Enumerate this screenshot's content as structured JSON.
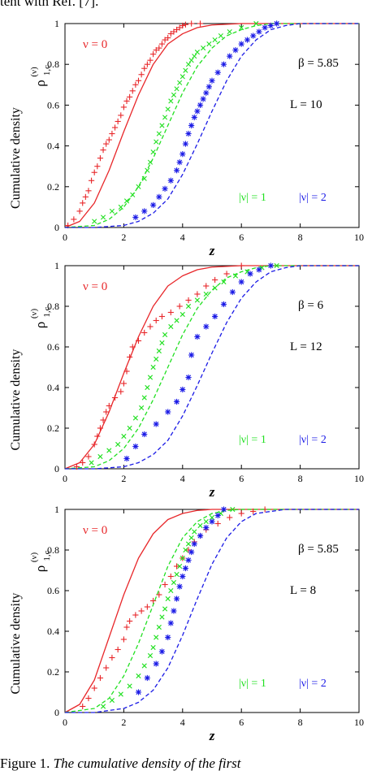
{
  "page": {
    "top_caption": "tent with Ref. [7].",
    "bottom_caption_label": "Figure 1.",
    "bottom_caption_text": "The cumulative density of the first"
  },
  "shared": {
    "ylabel": "Cumulative density",
    "ysymbol_main": "ρ",
    "ysymbol_sup": "(ν)",
    "ysymbol_sub": "1,c",
    "xlabel": "z",
    "xlim": [
      0,
      10
    ],
    "ylim": [
      0,
      1
    ],
    "xticks": [
      "0",
      "2",
      "4",
      "6",
      "8",
      "10"
    ],
    "yticks": [
      "0",
      "0.2",
      "0.4",
      "0.6",
      "0.8",
      "1"
    ],
    "colors": {
      "nu0": "#e8272a",
      "nu1": "#22e022",
      "nu2": "#1b1be6"
    },
    "markers": {
      "nu0": "plus",
      "nu1": "cross",
      "nu2": "asterisk"
    },
    "legend": {
      "nu0": "ν = 0",
      "nu1": "|ν| = 1",
      "nu2": "|ν| = 2"
    }
  },
  "chart_data": [
    {
      "type": "line",
      "annotations": {
        "beta": "β = 5.85",
        "L": "L = 10"
      },
      "series": [
        {
          "name": "ν = 0",
          "kind": "theory",
          "style": "solid",
          "color": "#e8272a",
          "x": [
            0,
            0.5,
            1,
            1.5,
            2,
            2.5,
            3,
            3.5,
            4,
            4.5,
            5,
            6,
            7,
            8,
            10
          ],
          "y": [
            0,
            0.03,
            0.12,
            0.28,
            0.47,
            0.65,
            0.8,
            0.9,
            0.95,
            0.98,
            0.993,
            1,
            1,
            1,
            1
          ]
        },
        {
          "name": "ν = 0",
          "kind": "data",
          "style": "plus",
          "color": "#e8272a",
          "x": [
            0.1,
            0.3,
            0.5,
            0.6,
            0.7,
            0.8,
            0.9,
            1.0,
            1.1,
            1.2,
            1.3,
            1.4,
            1.5,
            1.6,
            1.7,
            1.8,
            1.9,
            2.0,
            2.1,
            2.2,
            2.3,
            2.4,
            2.5,
            2.6,
            2.7,
            2.8,
            2.9,
            3.0,
            3.1,
            3.2,
            3.3,
            3.4,
            3.5,
            3.6,
            3.7,
            3.8,
            3.9,
            4.0,
            4.1,
            4.3,
            4.6
          ],
          "y": [
            0.01,
            0.04,
            0.08,
            0.12,
            0.15,
            0.18,
            0.23,
            0.27,
            0.3,
            0.34,
            0.38,
            0.41,
            0.43,
            0.46,
            0.49,
            0.52,
            0.55,
            0.59,
            0.62,
            0.64,
            0.67,
            0.7,
            0.72,
            0.75,
            0.78,
            0.8,
            0.82,
            0.85,
            0.87,
            0.88,
            0.9,
            0.92,
            0.93,
            0.95,
            0.96,
            0.97,
            0.98,
            0.99,
            0.995,
            1.0,
            1.0
          ]
        },
        {
          "name": "|ν| = 1",
          "kind": "theory",
          "style": "dashed",
          "color": "#22e022",
          "x": [
            0,
            1,
            1.5,
            2,
            2.5,
            3,
            3.5,
            4,
            4.5,
            5,
            5.5,
            6,
            6.5,
            7,
            8,
            10
          ],
          "y": [
            0,
            0.01,
            0.04,
            0.1,
            0.2,
            0.34,
            0.5,
            0.66,
            0.79,
            0.88,
            0.94,
            0.97,
            0.99,
            1,
            1,
            1
          ]
        },
        {
          "name": "|ν| = 1",
          "kind": "data",
          "style": "cross",
          "color": "#22e022",
          "x": [
            1.0,
            1.3,
            1.6,
            1.9,
            2.1,
            2.3,
            2.5,
            2.7,
            2.8,
            2.9,
            3.0,
            3.1,
            3.2,
            3.3,
            3.4,
            3.5,
            3.6,
            3.7,
            3.8,
            3.9,
            4.0,
            4.1,
            4.2,
            4.3,
            4.4,
            4.5,
            4.7,
            4.9,
            5.1,
            5.3,
            5.6,
            6.0,
            6.5
          ],
          "y": [
            0.03,
            0.05,
            0.08,
            0.1,
            0.13,
            0.16,
            0.2,
            0.24,
            0.28,
            0.32,
            0.37,
            0.42,
            0.46,
            0.5,
            0.54,
            0.58,
            0.62,
            0.65,
            0.68,
            0.71,
            0.74,
            0.77,
            0.8,
            0.82,
            0.84,
            0.86,
            0.88,
            0.9,
            0.92,
            0.94,
            0.96,
            0.98,
            1.0
          ]
        },
        {
          "name": "|ν| = 2",
          "kind": "theory",
          "style": "dashed",
          "color": "#1b1be6",
          "x": [
            0,
            1,
            2,
            2.5,
            3,
            3.5,
            4,
            4.5,
            5,
            5.5,
            6,
            6.5,
            7,
            7.5,
            8,
            10
          ],
          "y": [
            0,
            0,
            0.01,
            0.03,
            0.07,
            0.14,
            0.26,
            0.41,
            0.57,
            0.72,
            0.84,
            0.92,
            0.97,
            0.99,
            1,
            1
          ]
        },
        {
          "name": "|ν| = 2",
          "kind": "data",
          "style": "asterisk",
          "color": "#1b1be6",
          "x": [
            2.4,
            2.7,
            3.0,
            3.2,
            3.4,
            3.6,
            3.8,
            3.9,
            4.0,
            4.1,
            4.2,
            4.3,
            4.4,
            4.5,
            4.6,
            4.7,
            4.8,
            4.9,
            5.0,
            5.2,
            5.4,
            5.6,
            5.8,
            6.0,
            6.2,
            6.4,
            6.6,
            6.8,
            7.0,
            7.2
          ],
          "y": [
            0.05,
            0.08,
            0.11,
            0.15,
            0.19,
            0.23,
            0.28,
            0.32,
            0.36,
            0.41,
            0.46,
            0.5,
            0.54,
            0.57,
            0.6,
            0.63,
            0.66,
            0.69,
            0.72,
            0.76,
            0.8,
            0.84,
            0.87,
            0.9,
            0.92,
            0.94,
            0.96,
            0.98,
            0.99,
            1.0
          ]
        }
      ]
    },
    {
      "type": "line",
      "annotations": {
        "beta": "β = 6",
        "L": "L = 12"
      },
      "series": [
        {
          "name": "ν = 0",
          "kind": "theory",
          "style": "solid",
          "color": "#e8272a",
          "x": [
            0,
            0.5,
            1,
            1.5,
            2,
            2.5,
            3,
            3.5,
            4,
            4.5,
            5,
            6,
            7,
            8,
            10
          ],
          "y": [
            0,
            0.03,
            0.12,
            0.28,
            0.47,
            0.65,
            0.8,
            0.9,
            0.95,
            0.98,
            0.993,
            1,
            1,
            1,
            1
          ]
        },
        {
          "name": "ν = 0",
          "kind": "data",
          "style": "plus",
          "color": "#e8272a",
          "x": [
            0.4,
            0.6,
            0.8,
            1.0,
            1.1,
            1.2,
            1.3,
            1.4,
            1.5,
            1.7,
            1.9,
            2.0,
            2.1,
            2.2,
            2.3,
            2.5,
            2.7,
            2.9,
            3.1,
            3.3,
            3.6,
            3.9,
            4.2,
            4.5,
            4.8,
            5.1,
            5.5,
            6.0
          ],
          "y": [
            0.01,
            0.03,
            0.06,
            0.12,
            0.16,
            0.2,
            0.24,
            0.28,
            0.31,
            0.35,
            0.38,
            0.42,
            0.48,
            0.55,
            0.6,
            0.63,
            0.67,
            0.7,
            0.73,
            0.75,
            0.77,
            0.8,
            0.83,
            0.86,
            0.9,
            0.93,
            0.96,
            1.0
          ]
        },
        {
          "name": "|ν| = 1",
          "kind": "theory",
          "style": "dashed",
          "color": "#22e022",
          "x": [
            0,
            1,
            1.5,
            2,
            2.5,
            3,
            3.5,
            4,
            4.5,
            5,
            5.5,
            6,
            6.5,
            7,
            8,
            10
          ],
          "y": [
            0,
            0.01,
            0.04,
            0.1,
            0.2,
            0.34,
            0.5,
            0.66,
            0.79,
            0.88,
            0.94,
            0.97,
            0.99,
            1,
            1,
            1
          ]
        },
        {
          "name": "|ν| = 1",
          "kind": "data",
          "style": "cross",
          "color": "#22e022",
          "x": [
            0.9,
            1.2,
            1.5,
            1.8,
            2.0,
            2.2,
            2.4,
            2.6,
            2.7,
            2.8,
            2.9,
            3.0,
            3.1,
            3.2,
            3.3,
            3.4,
            3.6,
            3.8,
            4.0,
            4.2,
            4.5,
            4.8,
            5.1,
            5.4,
            5.8,
            6.2,
            6.7,
            7.2
          ],
          "y": [
            0.03,
            0.06,
            0.09,
            0.12,
            0.16,
            0.2,
            0.25,
            0.3,
            0.35,
            0.4,
            0.45,
            0.5,
            0.54,
            0.58,
            0.62,
            0.66,
            0.7,
            0.73,
            0.76,
            0.8,
            0.83,
            0.86,
            0.89,
            0.92,
            0.95,
            0.97,
            0.99,
            1.0
          ]
        },
        {
          "name": "|ν| = 2",
          "kind": "theory",
          "style": "dashed",
          "color": "#1b1be6",
          "x": [
            0,
            1,
            2,
            2.5,
            3,
            3.5,
            4,
            4.5,
            5,
            5.5,
            6,
            6.5,
            7,
            7.5,
            8,
            10
          ],
          "y": [
            0,
            0,
            0.01,
            0.03,
            0.07,
            0.14,
            0.26,
            0.41,
            0.57,
            0.72,
            0.84,
            0.92,
            0.97,
            0.99,
            1,
            1
          ]
        },
        {
          "name": "|ν| = 2",
          "kind": "data",
          "style": "asterisk",
          "color": "#1b1be6",
          "x": [
            2.1,
            2.4,
            2.7,
            3.1,
            3.5,
            3.8,
            4.0,
            4.2,
            4.3,
            4.5,
            4.8,
            5.1,
            5.4,
            5.7,
            6.0,
            6.3,
            6.6,
            7.0
          ],
          "y": [
            0.05,
            0.11,
            0.17,
            0.22,
            0.28,
            0.33,
            0.39,
            0.45,
            0.56,
            0.65,
            0.7,
            0.75,
            0.81,
            0.87,
            0.92,
            0.96,
            0.98,
            1.0
          ]
        }
      ]
    },
    {
      "type": "line",
      "annotations": {
        "beta": "β = 5.85",
        "L": "L = 8"
      },
      "series": [
        {
          "name": "ν = 0",
          "kind": "theory",
          "style": "solid",
          "color": "#e8272a",
          "x": [
            0,
            0.5,
            1,
            1.5,
            2,
            2.5,
            3,
            3.5,
            4,
            4.5,
            5,
            6,
            7,
            8,
            10
          ],
          "y": [
            0,
            0.04,
            0.16,
            0.37,
            0.58,
            0.76,
            0.88,
            0.95,
            0.98,
            0.995,
            1,
            1,
            1,
            1,
            1
          ]
        },
        {
          "name": "ν = 0",
          "kind": "data",
          "style": "plus",
          "color": "#e8272a",
          "x": [
            0.6,
            0.8,
            1.0,
            1.2,
            1.4,
            1.6,
            1.8,
            2.0,
            2.1,
            2.2,
            2.4,
            2.6,
            2.8,
            3.0,
            3.2,
            3.4,
            3.6,
            3.8,
            4.0,
            4.2,
            4.4,
            4.6,
            4.8,
            5.2,
            5.6,
            6.0,
            6.4,
            6.8
          ],
          "y": [
            0.03,
            0.07,
            0.12,
            0.17,
            0.22,
            0.27,
            0.31,
            0.36,
            0.42,
            0.45,
            0.48,
            0.5,
            0.52,
            0.55,
            0.58,
            0.63,
            0.67,
            0.72,
            0.76,
            0.8,
            0.84,
            0.87,
            0.9,
            0.93,
            0.96,
            0.98,
            0.99,
            1.0
          ]
        },
        {
          "name": "|ν| = 1",
          "kind": "theory",
          "style": "dashed",
          "color": "#22e022",
          "x": [
            0,
            1,
            1.5,
            2,
            2.5,
            3,
            3.5,
            4,
            4.5,
            5,
            5.5,
            6,
            6.5,
            7,
            8,
            10
          ],
          "y": [
            0,
            0.02,
            0.07,
            0.18,
            0.34,
            0.53,
            0.72,
            0.86,
            0.94,
            0.98,
            0.995,
            1,
            1,
            1,
            1,
            1
          ]
        },
        {
          "name": "|ν| = 1",
          "kind": "data",
          "style": "cross",
          "color": "#22e022",
          "x": [
            1.3,
            1.6,
            1.9,
            2.2,
            2.5,
            2.7,
            2.9,
            3.0,
            3.1,
            3.2,
            3.3,
            3.4,
            3.5,
            3.6,
            3.7,
            3.8,
            3.9,
            4.0,
            4.1,
            4.2,
            4.3,
            4.4,
            4.6,
            4.8,
            5.0,
            5.3,
            5.7
          ],
          "y": [
            0.03,
            0.06,
            0.09,
            0.13,
            0.18,
            0.23,
            0.28,
            0.32,
            0.37,
            0.42,
            0.47,
            0.51,
            0.56,
            0.6,
            0.64,
            0.68,
            0.72,
            0.76,
            0.8,
            0.83,
            0.86,
            0.89,
            0.92,
            0.94,
            0.96,
            0.98,
            1.0
          ]
        },
        {
          "name": "|ν| = 2",
          "kind": "theory",
          "style": "dashed",
          "color": "#1b1be6",
          "x": [
            0,
            1,
            2,
            2.5,
            3,
            3.5,
            4,
            4.5,
            5,
            5.5,
            6,
            6.5,
            7,
            7.5,
            8,
            10
          ],
          "y": [
            0,
            0,
            0.02,
            0.05,
            0.11,
            0.22,
            0.38,
            0.56,
            0.73,
            0.86,
            0.94,
            0.98,
            0.99,
            1,
            1,
            1
          ]
        },
        {
          "name": "|ν| = 2",
          "kind": "data",
          "style": "asterisk",
          "color": "#1b1be6",
          "x": [
            2.5,
            2.8,
            3.1,
            3.3,
            3.5,
            3.6,
            3.7,
            3.8,
            3.9,
            4.0,
            4.1,
            4.2,
            4.3,
            4.4,
            4.6,
            4.8,
            5.0,
            5.2,
            5.4
          ],
          "y": [
            0.1,
            0.17,
            0.24,
            0.3,
            0.37,
            0.44,
            0.5,
            0.56,
            0.62,
            0.67,
            0.71,
            0.75,
            0.79,
            0.83,
            0.87,
            0.91,
            0.94,
            0.97,
            1.0
          ]
        }
      ]
    }
  ]
}
